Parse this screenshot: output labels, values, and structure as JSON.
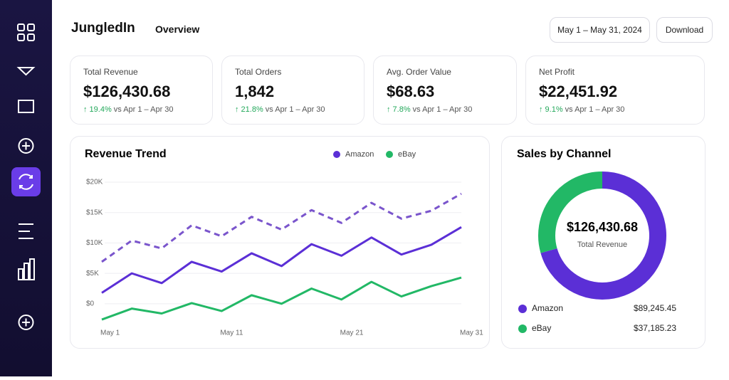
{
  "header": {
    "brand": "JungledIn",
    "tab": "Overview",
    "date_range": "May 1 – May 31, 2024",
    "download": "Download"
  },
  "kpis": [
    {
      "label": "Total Revenue",
      "value": "$126,430.68",
      "change": "↑ 19.4%",
      "compare": "vs Apr 1 – Apr 30"
    },
    {
      "label": "Total Orders",
      "value": "1,842",
      "change": "↑ 21.8%",
      "compare": "vs Apr 1 – Apr 30"
    },
    {
      "label": "Avg. Order Value",
      "value": "$68.63",
      "change": "↑ 7.8%",
      "compare": "vs Apr 1 – Apr 30"
    },
    {
      "label": "Net Profit",
      "value": "$22,451.92",
      "change": "↑ 9.1%",
      "compare": "vs Apr 1 – Apr 30"
    }
  ],
  "chart_data": [
    {
      "type": "line",
      "title": "Revenue Trend",
      "x": [
        1,
        3.5,
        6,
        8.5,
        11,
        13.5,
        16,
        18.5,
        21,
        23.5,
        26,
        28.5,
        31
      ],
      "xlim": [
        1,
        31
      ],
      "xticks": [
        {
          "value": 1,
          "label": "May 1"
        },
        {
          "value": 11,
          "label": "May 11"
        },
        {
          "value": 21,
          "label": "May 21"
        },
        {
          "value": 31,
          "label": "May 31"
        }
      ],
      "ylim": [
        -4000,
        20000
      ],
      "yticks": [
        {
          "value": 0,
          "label": "$0"
        },
        {
          "value": 5000,
          "label": "$5K"
        },
        {
          "value": 10000,
          "label": "$10K"
        },
        {
          "value": 15000,
          "label": "$15K"
        },
        {
          "value": 20000,
          "label": "$20K"
        }
      ],
      "grid": true,
      "series": [
        {
          "name": "Amazon",
          "color": "#5b2fd6",
          "values": [
            1800,
            5000,
            3400,
            6900,
            5300,
            8300,
            6200,
            9800,
            7900,
            10900,
            8100,
            9700,
            12600
          ]
        },
        {
          "name": "eBay",
          "color": "#22b866",
          "values": [
            -2600,
            -800,
            -1600,
            100,
            -1200,
            1400,
            0,
            2500,
            700,
            3600,
            1200,
            2900,
            4300
          ]
        },
        {
          "color": "#7a55cc",
          "dashed": true,
          "values": [
            6900,
            10400,
            9100,
            12900,
            11100,
            14300,
            12200,
            15400,
            13300,
            16600,
            14000,
            15300,
            18100
          ]
        }
      ]
    },
    {
      "type": "donut",
      "title": "Sales by Channel",
      "center_value": "$126,430.68",
      "center_label": "Total Revenue",
      "categories": [
        "Amazon",
        "eBay"
      ],
      "values": [
        89245.45,
        37185.23
      ],
      "value_labels": [
        "$89,245.45",
        "$37,185.23"
      ],
      "colors": [
        "#5b2fd6",
        "#22b866"
      ]
    }
  ]
}
